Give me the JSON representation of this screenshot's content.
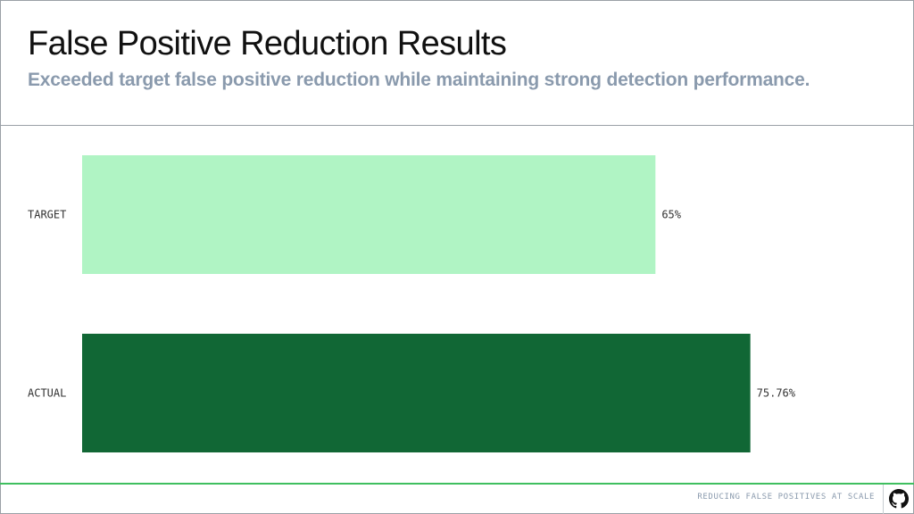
{
  "header": {
    "title": "False Positive Reduction Results",
    "subtitle": "Exceeded target false positive reduction while maintaining strong detection performance."
  },
  "chart_data": {
    "type": "bar",
    "orientation": "horizontal",
    "categories": [
      "TARGET",
      "ACTUAL"
    ],
    "values": [
      65,
      75.76
    ],
    "value_labels": [
      "65%",
      "75.76%"
    ],
    "title": "",
    "xlabel": "",
    "ylabel": "",
    "xlim": [
      0,
      93.1
    ],
    "grid": false,
    "legend": "none",
    "colors": [
      "#b0f4c4",
      "#116735"
    ]
  },
  "footer": {
    "text": "REDUCING FALSE POSITIVES AT SCALE",
    "icon": "github-icon"
  }
}
